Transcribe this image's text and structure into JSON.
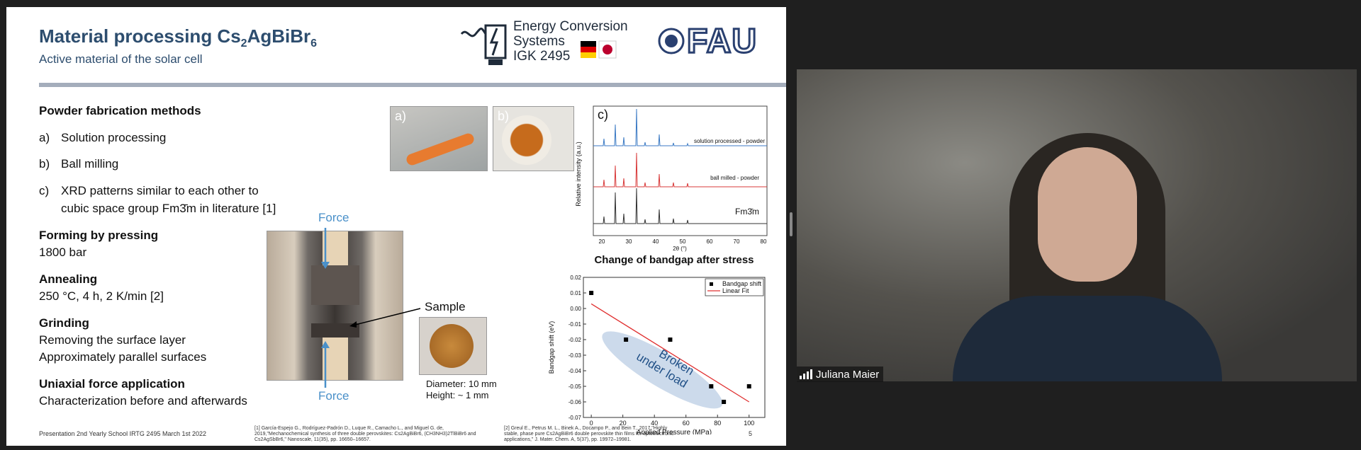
{
  "slide": {
    "title_main": "Material processing Cs",
    "title_sub1": "2",
    "title_mid": "AgBiBr",
    "title_sub2": "6",
    "subtitle": "Active material of the solar cell",
    "logo": {
      "line1": "Energy Conversion",
      "line2": "Systems",
      "line3": "IGK 2495",
      "university": "FAU"
    },
    "left": {
      "heading_powder": "Powder fabrication methods",
      "item_a_letter": "a)",
      "item_a": "Solution processing",
      "item_b_letter": "b)",
      "item_b": "Ball milling",
      "item_c_letter": "c)",
      "item_c_line1": "XRD patterns similar to each other to",
      "item_c_line2": "cubic space group Fm3̄m in literature [1]",
      "heading_forming": "Forming by pressing",
      "forming_value": "1800 bar",
      "heading_annealing": "Annealing",
      "annealing_value": "250 °C, 4 h, 2 K/min [2]",
      "heading_grinding": "Grinding",
      "grinding_line1": "Removing the surface layer",
      "grinding_line2": "Approximately parallel surfaces",
      "heading_uniaxial": "Uniaxial force application",
      "uniaxial_value": "Characterization before and afterwards"
    },
    "press": {
      "force_top": "Force",
      "force_bottom": "Force",
      "sample_label": "Sample",
      "diameter": "Diameter: 10 mm",
      "height": "Height: ~ 1 mm"
    },
    "photo_labels": {
      "a": "a)",
      "b": "b)"
    },
    "xrd": {
      "panel_label": "c)",
      "ylabel": "Relative intensity (a.u.)",
      "xlabel": "2θ (°)",
      "series_solution": "solution processed - powder",
      "series_ball": "ball milled - powder",
      "series_ref": "Fm3̄m",
      "ticks": [
        "20",
        "30",
        "40",
        "50",
        "60",
        "70",
        "80"
      ]
    },
    "footer": {
      "event": "Presentation 2nd Yearly School  IRTG 2495   March 1st 2022",
      "ref1_l1": "[1] García-Espejo G., Rodríguez-Padrón D., Luque R., Camacho L., and Miguel G. de,",
      "ref1_l2": "2019,\"Mechanochemical synthesis of three double perovskites: Cs2AgBiBr6, (CH3NH3)2TlBiBr6 and",
      "ref1_l3": "Cs2AgSbBr6,\" Nanoscale, 11(35), pp. 16650–16657.",
      "ref2_l1": "[2] Greul E., Petrus M. L., Binek A., Docampo P., and Bein T., 2017,\"Highly",
      "ref2_l2": "stable, phase pure Cs2AgBiBr6 double perovskite thin films for optoelectronic",
      "ref2_l3": "applications,\" J. Mater. Chem. A, 5(37), pp. 19972–19981.",
      "page": "5"
    },
    "colors": {
      "title": "#2d4d6e",
      "force_blue": "#4a90c9",
      "fit_red": "#e03030"
    }
  },
  "participant": {
    "name": "Juliana Maier"
  },
  "chart_data": {
    "type": "scatter",
    "title": "Change of bandgap after stress",
    "xlabel": "Applied Pressure (MPa)",
    "ylabel": "Bandgap shift (eV)",
    "xlim": [
      -5,
      110
    ],
    "ylim": [
      -0.07,
      0.02
    ],
    "xticks": [
      0,
      20,
      40,
      60,
      80,
      100
    ],
    "yticks": [
      0.02,
      0.01,
      0.0,
      -0.01,
      -0.02,
      -0.03,
      -0.04,
      -0.05,
      -0.06,
      -0.07
    ],
    "ytick_labels": [
      "0.02",
      "0.01",
      "0.00",
      "-0.01",
      "-0.02",
      "-0.03",
      "-0.04",
      "-0.05",
      "-0.06",
      "-0.07"
    ],
    "series": [
      {
        "name": "Bandgap shift",
        "x": [
          0,
          22,
          50,
          76,
          84,
          100
        ],
        "y": [
          0.01,
          -0.02,
          -0.02,
          -0.05,
          -0.06,
          -0.05
        ]
      },
      {
        "name": "Linear Fit",
        "x": [
          0,
          100
        ],
        "y": [
          0.003,
          -0.06
        ]
      }
    ],
    "legend": "top-right",
    "annotation": "Broken under load",
    "annotation_line1": "Broken",
    "annotation_line2": "under load"
  }
}
